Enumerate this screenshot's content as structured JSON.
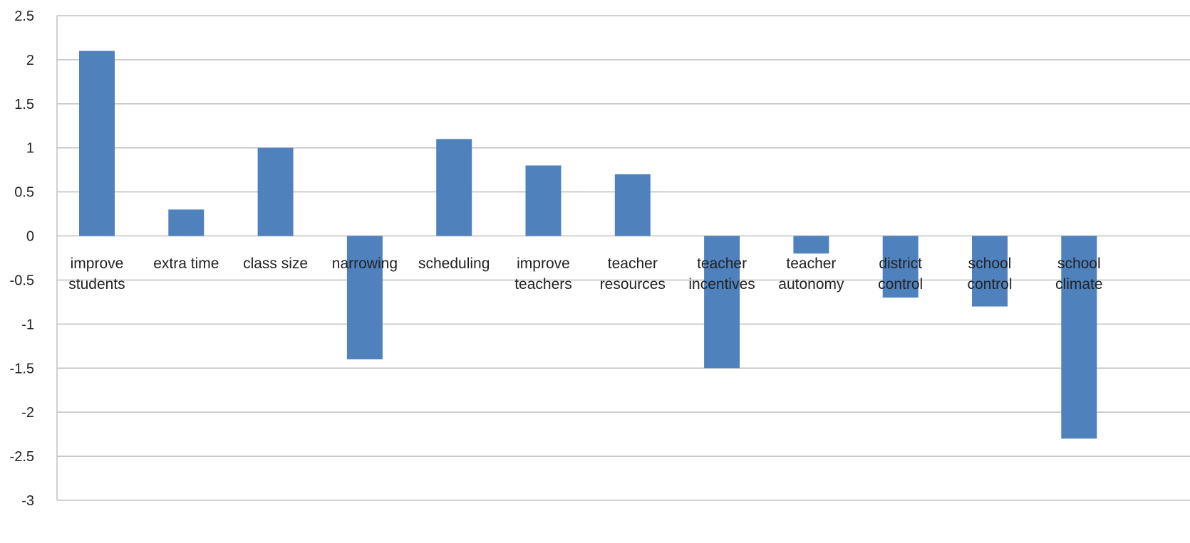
{
  "chart_data": {
    "type": "bar",
    "title": "",
    "xlabel": "",
    "ylabel": "",
    "categories": [
      [
        "improve",
        "students"
      ],
      [
        "extra time"
      ],
      [
        "class size"
      ],
      [
        "narrowing"
      ],
      [
        "scheduling"
      ],
      [
        "improve",
        "teachers"
      ],
      [
        "teacher",
        "resources"
      ],
      [
        "teacher",
        "incentives"
      ],
      [
        "teacher",
        "autonomy"
      ],
      [
        "district",
        "control"
      ],
      [
        "school",
        "control"
      ],
      [
        "school",
        "climate"
      ]
    ],
    "values": [
      2.1,
      0.3,
      1.0,
      -1.4,
      1.1,
      0.8,
      0.7,
      -1.5,
      -0.2,
      -0.7,
      -0.8,
      -2.3
    ],
    "ylim": [
      -3,
      2.5
    ],
    "yticks": [
      "2.5",
      "2",
      "1.5",
      "1",
      "0.5",
      "0",
      "-0.5",
      "-1",
      "-1.5",
      "-2",
      "-2.5",
      "-3"
    ],
    "grid": true,
    "legend": "none",
    "colors": {
      "bar": "#4f81bd",
      "grid": "#c0c0c0",
      "text": "#222222"
    }
  }
}
